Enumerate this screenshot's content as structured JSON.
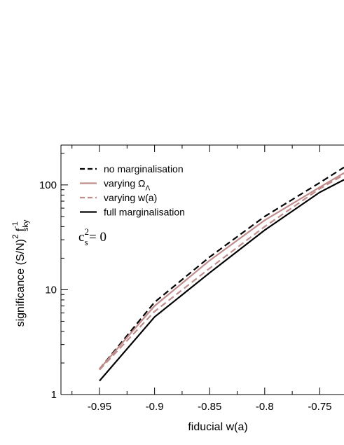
{
  "chart_data": {
    "type": "line",
    "xlabel": "fiducial w(a)",
    "ylabel_parts": {
      "main": "significance (S/N)",
      "sup_sn": "2",
      "f": "f",
      "sup_f": "-1",
      "sub_f": "sky"
    },
    "xlim": [
      -0.985,
      -0.728
    ],
    "ylim": [
      1,
      240
    ],
    "yscale": "log",
    "xticks": [
      -0.95,
      -0.9,
      -0.85,
      -0.8,
      -0.75
    ],
    "xtick_labels": [
      "-0.95",
      "-0.9",
      "-0.85",
      "-0.8",
      "-0.75"
    ],
    "yticks": [
      1,
      10,
      100
    ],
    "ytick_labels": [
      "1",
      "10",
      "100"
    ],
    "legend_position": "top-left",
    "annotation": {
      "c": "c",
      "sub": "s",
      "sup": "2",
      "rest": "= 0"
    },
    "series": [
      {
        "name": "no marginalisation",
        "label_parts": {
          "text": "no marginalisation"
        },
        "style": "dashed",
        "color": "#000000",
        "x": [
          -0.95,
          -0.9,
          -0.85,
          -0.8,
          -0.75,
          -0.728
        ],
        "y": [
          1.75,
          7.6,
          20.5,
          50,
          105,
          147
        ]
      },
      {
        "name": "varying Ω_Λ",
        "label_parts": {
          "text": "varying Ω",
          "sub": "Λ"
        },
        "style": "solid",
        "color": "#c08c8c",
        "x": [
          -0.95,
          -0.9,
          -0.85,
          -0.8,
          -0.75,
          -0.728
        ],
        "y": [
          1.75,
          7.0,
          19.0,
          46,
          95,
          130
        ]
      },
      {
        "name": "varying w(a)",
        "label_parts": {
          "text": "varying w(a)"
        },
        "style": "dashed",
        "color": "#c08c8c",
        "x": [
          -0.95,
          -0.9,
          -0.85,
          -0.8,
          -0.75,
          -0.728
        ],
        "y": [
          1.72,
          6.2,
          16.0,
          40,
          92,
          125
        ]
      },
      {
        "name": "full marginalisation",
        "label_parts": {
          "text": "full marginalisation"
        },
        "style": "solid",
        "color": "#000000",
        "x": [
          -0.95,
          -0.9,
          -0.85,
          -0.8,
          -0.75,
          -0.728
        ],
        "y": [
          1.35,
          5.5,
          14.5,
          37,
          85,
          112
        ]
      }
    ]
  }
}
